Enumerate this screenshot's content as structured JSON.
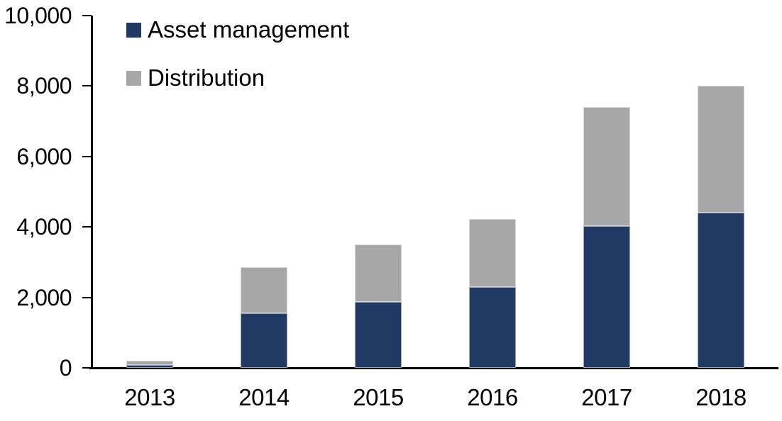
{
  "chart_data": {
    "type": "bar",
    "stacked": true,
    "title": "",
    "xlabel": "",
    "ylabel": "",
    "grid": false,
    "legend_position": "top-left",
    "categories": [
      "2013",
      "2014",
      "2015",
      "2016",
      "2017",
      "2018"
    ],
    "series": [
      {
        "name": "Asset management",
        "color": "#213A63",
        "values": [
          80,
          1550,
          1880,
          2300,
          4030,
          4400
        ]
      },
      {
        "name": "Distribution",
        "color": "#A7A7A7",
        "values": [
          130,
          1300,
          1620,
          1930,
          3370,
          3600
        ]
      }
    ],
    "totals": [
      210,
      2850,
      3500,
      4230,
      7400,
      8000
    ],
    "ylim": [
      0,
      10000
    ],
    "ytick_interval": 2000,
    "ytick_labels": [
      "0",
      "2,000",
      "4,000",
      "6,000",
      "8,000",
      "10,000"
    ],
    "axis_color": "#000000",
    "text_color": "#000000",
    "background_color": "#FFFFFF"
  }
}
